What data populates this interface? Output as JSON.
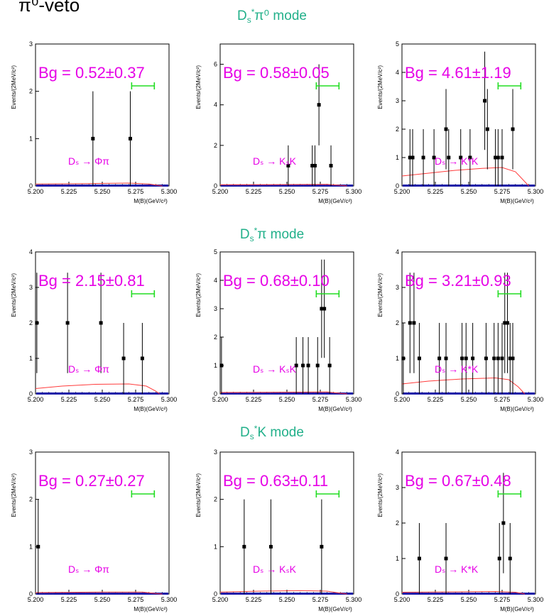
{
  "page": {
    "corner_text": "π⁰-veto",
    "row_titles": [
      {
        "d": "D",
        "sub": "s",
        "sup": "*",
        "rest": "π⁰ mode"
      },
      {
        "d": "D",
        "sub": "s",
        "sup": "*",
        "rest": "π mode"
      },
      {
        "d": "D",
        "sub": "s",
        "sup": "*",
        "rest": "K mode"
      }
    ]
  },
  "colors": {
    "text": "#e600e6",
    "fit": "#ff3b3b",
    "window": "#22dd22",
    "points": "#000000",
    "title": "#22b08a"
  },
  "chart_data": [
    {
      "type": "scatter",
      "row": 0,
      "col": 0,
      "bg_label": "Bg = 0.52±0.37",
      "decay_label": "Dₛ → Φπ",
      "xlabel": "M(B)(GeV/c²)",
      "ylabel": "Events/(2MeV/c²)",
      "xlim": [
        5.2,
        5.3
      ],
      "ylim": [
        0,
        3
      ],
      "yticks": [
        0,
        1,
        2,
        3
      ],
      "xticks": [
        "5.200",
        "5.225",
        "5.250",
        "5.275",
        "5.300"
      ],
      "window": [
        5.272,
        5.289
      ],
      "points": [
        {
          "x": 5.243,
          "y": 1
        },
        {
          "x": 5.271,
          "y": 1
        }
      ],
      "fit": [
        [
          5.2,
          0.04
        ],
        [
          5.24,
          0.05
        ],
        [
          5.27,
          0.06
        ],
        [
          5.285,
          0.04
        ],
        [
          5.295,
          0.0
        ]
      ],
      "show_xlabel": true
    },
    {
      "type": "scatter",
      "row": 0,
      "col": 1,
      "bg_label": "Bg = 0.58±0.05",
      "decay_label": "Dₛ → KₛK",
      "xlabel": "M(B)(GeV/c²)",
      "ylabel": "Events/(2MeV/c²)",
      "xlim": [
        5.2,
        5.3
      ],
      "ylim": [
        0,
        7
      ],
      "yticks": [
        0,
        2,
        4,
        6
      ],
      "xticks": [
        "5.200",
        "5.225",
        "5.250",
        "5.275",
        "5.300"
      ],
      "window": [
        5.272,
        5.289
      ],
      "points": [
        {
          "x": 5.251,
          "y": 1
        },
        {
          "x": 5.269,
          "y": 1
        },
        {
          "x": 5.271,
          "y": 1
        },
        {
          "x": 5.274,
          "y": 4
        },
        {
          "x": 5.283,
          "y": 1
        }
      ],
      "fit": [
        [
          5.2,
          0.06
        ],
        [
          5.25,
          0.07
        ],
        [
          5.28,
          0.08
        ],
        [
          5.29,
          0.03
        ],
        [
          5.295,
          0.0
        ]
      ],
      "show_xlabel": true
    },
    {
      "type": "scatter",
      "row": 0,
      "col": 2,
      "bg_label": "Bg = 4.61±1.19",
      "decay_label": "Dₛ → K*K",
      "xlabel": "M(B)(GeV/c²)",
      "ylabel": "Events/(2MeV/c²)",
      "xlim": [
        5.2,
        5.3
      ],
      "ylim": [
        0,
        5
      ],
      "yticks": [
        0,
        1,
        2,
        3,
        4,
        5
      ],
      "xticks": [
        "5.200",
        "5.225",
        "5.250",
        "5.275",
        "5.300"
      ],
      "window": [
        5.272,
        5.289
      ],
      "points": [
        {
          "x": 5.206,
          "y": 1
        },
        {
          "x": 5.208,
          "y": 1
        },
        {
          "x": 5.216,
          "y": 1
        },
        {
          "x": 5.224,
          "y": 1
        },
        {
          "x": 5.233,
          "y": 2
        },
        {
          "x": 5.235,
          "y": 1
        },
        {
          "x": 5.244,
          "y": 1
        },
        {
          "x": 5.251,
          "y": 1
        },
        {
          "x": 5.262,
          "y": 3
        },
        {
          "x": 5.264,
          "y": 2
        },
        {
          "x": 5.27,
          "y": 1
        },
        {
          "x": 5.272,
          "y": 1
        },
        {
          "x": 5.275,
          "y": 1
        },
        {
          "x": 5.283,
          "y": 2
        }
      ],
      "fit": [
        [
          5.2,
          0.35
        ],
        [
          5.22,
          0.45
        ],
        [
          5.24,
          0.55
        ],
        [
          5.26,
          0.62
        ],
        [
          5.275,
          0.65
        ],
        [
          5.285,
          0.5
        ],
        [
          5.29,
          0.25
        ],
        [
          5.295,
          0.0
        ]
      ],
      "show_xlabel": true
    },
    {
      "type": "scatter",
      "row": 1,
      "col": 0,
      "bg_label": "Bg = 2.15±0.81",
      "decay_label": "Dₛ → Φπ",
      "xlabel": "M(B)(GeV/c²)",
      "ylabel": "Events/(2MeV/c²)",
      "xlim": [
        5.2,
        5.3
      ],
      "ylim": [
        0,
        4
      ],
      "yticks": [
        0,
        1,
        2,
        3,
        4
      ],
      "xticks": [
        "5.200",
        "5.225",
        "5.250",
        "5.275",
        "5.300"
      ],
      "window": [
        5.272,
        5.289
      ],
      "points": [
        {
          "x": 5.201,
          "y": 2
        },
        {
          "x": 5.224,
          "y": 2
        },
        {
          "x": 5.249,
          "y": 2
        },
        {
          "x": 5.266,
          "y": 1
        },
        {
          "x": 5.28,
          "y": 1
        }
      ],
      "fit": [
        [
          5.2,
          0.15
        ],
        [
          5.22,
          0.22
        ],
        [
          5.245,
          0.27
        ],
        [
          5.27,
          0.28
        ],
        [
          5.283,
          0.22
        ],
        [
          5.29,
          0.08
        ],
        [
          5.293,
          0.0
        ]
      ],
      "show_xlabel": true
    },
    {
      "type": "scatter",
      "row": 1,
      "col": 1,
      "bg_label": "Bg = 0.68±0.10",
      "decay_label": "Dₛ → KₛK",
      "xlabel": "M(B)(GeV/c²)",
      "ylabel": "Events/(2MeV/c²)",
      "xlim": [
        5.2,
        5.3
      ],
      "ylim": [
        0,
        5
      ],
      "yticks": [
        0,
        1,
        2,
        3,
        4,
        5
      ],
      "xticks": [
        "5.200",
        "5.225",
        "5.250",
        "5.275",
        "5.300"
      ],
      "window": [
        5.272,
        5.289
      ],
      "points": [
        {
          "x": 5.201,
          "y": 1
        },
        {
          "x": 5.257,
          "y": 1
        },
        {
          "x": 5.262,
          "y": 1
        },
        {
          "x": 5.266,
          "y": 1
        },
        {
          "x": 5.273,
          "y": 1
        },
        {
          "x": 5.276,
          "y": 3
        },
        {
          "x": 5.278,
          "y": 3
        },
        {
          "x": 5.282,
          "y": 1
        }
      ],
      "fit": [
        [
          5.2,
          0.05
        ],
        [
          5.25,
          0.06
        ],
        [
          5.28,
          0.07
        ],
        [
          5.29,
          0.02
        ],
        [
          5.295,
          0.0
        ]
      ],
      "show_xlabel": true
    },
    {
      "type": "scatter",
      "row": 1,
      "col": 2,
      "bg_label": "Bg = 3.21±0.93",
      "decay_label": "Dₛ → K*K",
      "xlabel": "M(B)(GeV/c²)",
      "ylabel": "Events/(2MeV/c²)",
      "xlim": [
        5.2,
        5.3
      ],
      "ylim": [
        0,
        4
      ],
      "yticks": [
        0,
        1,
        2,
        3,
        4
      ],
      "xticks": [
        "5.200",
        "5.225",
        "5.250",
        "5.275",
        "5.300"
      ],
      "window": [
        5.272,
        5.289
      ],
      "points": [
        {
          "x": 5.201,
          "y": 1
        },
        {
          "x": 5.206,
          "y": 2
        },
        {
          "x": 5.209,
          "y": 2
        },
        {
          "x": 5.213,
          "y": 1
        },
        {
          "x": 5.228,
          "y": 1
        },
        {
          "x": 5.233,
          "y": 1
        },
        {
          "x": 5.245,
          "y": 1
        },
        {
          "x": 5.248,
          "y": 1
        },
        {
          "x": 5.253,
          "y": 1
        },
        {
          "x": 5.263,
          "y": 1
        },
        {
          "x": 5.269,
          "y": 1
        },
        {
          "x": 5.272,
          "y": 1
        },
        {
          "x": 5.275,
          "y": 1
        },
        {
          "x": 5.277,
          "y": 2
        },
        {
          "x": 5.279,
          "y": 2
        },
        {
          "x": 5.281,
          "y": 1
        },
        {
          "x": 5.283,
          "y": 1
        }
      ],
      "fit": [
        [
          5.2,
          0.28
        ],
        [
          5.22,
          0.36
        ],
        [
          5.245,
          0.42
        ],
        [
          5.27,
          0.45
        ],
        [
          5.28,
          0.4
        ],
        [
          5.287,
          0.2
        ],
        [
          5.292,
          0.0
        ]
      ],
      "show_xlabel": true
    },
    {
      "type": "scatter",
      "row": 2,
      "col": 0,
      "bg_label": "Bg = 0.27±0.27",
      "decay_label": "Dₛ → Φπ",
      "xlabel": "M(B)(GeV/c²)",
      "ylabel": "Events/(2MeV/c²)",
      "xlim": [
        5.2,
        5.3
      ],
      "ylim": [
        0,
        3
      ],
      "yticks": [
        0,
        1,
        2,
        3
      ],
      "xticks": [
        "5.200",
        "5.225",
        "5.250",
        "5.275",
        "5.300"
      ],
      "window": [
        5.272,
        5.289
      ],
      "points": [
        {
          "x": 5.202,
          "y": 1
        }
      ],
      "fit": [
        [
          5.2,
          0.03
        ],
        [
          5.25,
          0.04
        ],
        [
          5.28,
          0.04
        ],
        [
          5.29,
          0.01
        ],
        [
          5.295,
          0.0
        ]
      ],
      "show_xlabel": true
    },
    {
      "type": "scatter",
      "row": 2,
      "col": 1,
      "bg_label": "Bg = 0.63±0.11",
      "decay_label": "Dₛ → KₛK",
      "xlabel": "M(B)(GeV/c²)",
      "ylabel": "Events/(2MeV/c²)",
      "xlim": [
        5.2,
        5.3
      ],
      "ylim": [
        0,
        3
      ],
      "yticks": [
        0,
        1,
        2,
        3
      ],
      "xticks": [
        "5.200",
        "5.225",
        "5.250",
        "5.275",
        "5.300"
      ],
      "window": [
        5.272,
        5.289
      ],
      "points": [
        {
          "x": 5.218,
          "y": 1
        },
        {
          "x": 5.238,
          "y": 1
        },
        {
          "x": 5.276,
          "y": 1
        }
      ],
      "fit": [
        [
          5.2,
          0.04
        ],
        [
          5.23,
          0.06
        ],
        [
          5.26,
          0.07
        ],
        [
          5.28,
          0.06
        ],
        [
          5.29,
          0.02
        ],
        [
          5.295,
          0.0
        ]
      ],
      "show_xlabel": true
    },
    {
      "type": "scatter",
      "row": 2,
      "col": 2,
      "bg_label": "Bg = 0.67±0.48",
      "decay_label": "Dₛ → K*K",
      "xlabel": "M(B)(GeV/c²)",
      "ylabel": "Events/(2MeV/c²)",
      "xlim": [
        5.2,
        5.3
      ],
      "ylim": [
        0,
        4
      ],
      "yticks": [
        0,
        1,
        2,
        3,
        4
      ],
      "xticks": [
        "5.200",
        "5.225",
        "5.250",
        "5.275",
        "5.300"
      ],
      "window": [
        5.272,
        5.289
      ],
      "points": [
        {
          "x": 5.213,
          "y": 1
        },
        {
          "x": 5.233,
          "y": 1
        },
        {
          "x": 5.273,
          "y": 1
        },
        {
          "x": 5.276,
          "y": 2
        },
        {
          "x": 5.281,
          "y": 1
        }
      ],
      "fit": [
        [
          5.2,
          0.05
        ],
        [
          5.24,
          0.06
        ],
        [
          5.27,
          0.07
        ],
        [
          5.285,
          0.05
        ],
        [
          5.292,
          0.0
        ]
      ],
      "show_xlabel": true
    }
  ]
}
